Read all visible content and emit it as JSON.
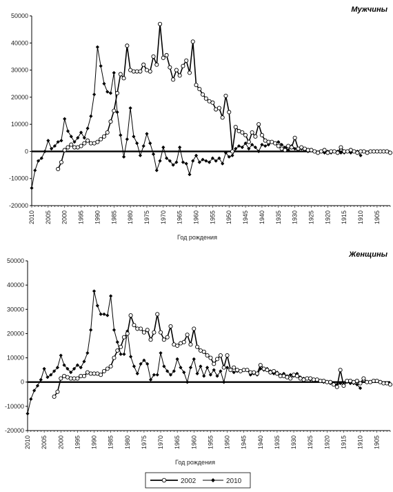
{
  "legend": {
    "placement": "bottom-center"
  },
  "chart_data": [
    {
      "type": "line",
      "title": "Мужчины",
      "xlabel": "Год рождения",
      "ylabel": "",
      "ylim": [
        -20000,
        50000
      ],
      "yticks": [
        -20000,
        -10000,
        0,
        10000,
        20000,
        30000,
        40000,
        50000
      ],
      "xlim": [
        2010,
        1901
      ],
      "xticks": [
        2010,
        2005,
        2000,
        1995,
        1990,
        1985,
        1980,
        1975,
        1970,
        1965,
        1960,
        1955,
        1950,
        1945,
        1940,
        1935,
        1930,
        1925,
        1920,
        1915,
        1910,
        1905
      ],
      "grid": false,
      "series": [
        {
          "name": "2002",
          "color": "#000000",
          "marker": "open-circle",
          "x": [
            2002,
            2001,
            2000,
            1999,
            1998,
            1997,
            1996,
            1995,
            1994,
            1993,
            1992,
            1991,
            1990,
            1989,
            1988,
            1987,
            1986,
            1985,
            1984,
            1983,
            1982,
            1981,
            1980,
            1979,
            1978,
            1977,
            1976,
            1975,
            1974,
            1973,
            1972,
            1971,
            1970,
            1969,
            1968,
            1967,
            1966,
            1965,
            1964,
            1963,
            1962,
            1961,
            1960,
            1959,
            1958,
            1957,
            1956,
            1955,
            1954,
            1953,
            1952,
            1951,
            1950,
            1949,
            1948,
            1947,
            1946,
            1945,
            1944,
            1943,
            1942,
            1941,
            1940,
            1939,
            1938,
            1937,
            1936,
            1935,
            1934,
            1933,
            1932,
            1931,
            1930,
            1929,
            1928,
            1927,
            1926,
            1925,
            1924,
            1923,
            1922,
            1921,
            1920,
            1919,
            1918,
            1917,
            1916,
            1915,
            1914,
            1913,
            1912,
            1911,
            1910,
            1909,
            1908,
            1907,
            1906,
            1905,
            1904,
            1903,
            1902,
            1901
          ],
          "values": [
            -6500,
            -4000,
            500,
            1500,
            2500,
            1500,
            1500,
            2000,
            3000,
            4000,
            3000,
            3000,
            3500,
            4500,
            5500,
            7000,
            11000,
            15000,
            21500,
            28500,
            27000,
            39000,
            30000,
            29500,
            29500,
            29500,
            32000,
            30000,
            29500,
            35000,
            32000,
            47000,
            34500,
            35500,
            31000,
            26500,
            30000,
            28000,
            31500,
            33500,
            29000,
            40500,
            24500,
            23000,
            21000,
            19500,
            18500,
            18000,
            15500,
            16000,
            12500,
            20500,
            14500,
            0,
            9000,
            7500,
            7000,
            6000,
            3500,
            7000,
            5500,
            10000,
            6000,
            4000,
            3500,
            3500,
            3000,
            2000,
            1000,
            500,
            2000,
            1500,
            5000,
            1000,
            1500,
            1000,
            500,
            500,
            0,
            -500,
            0,
            500,
            -500,
            0,
            0,
            -500,
            1500,
            0,
            0,
            500,
            0,
            -500,
            0,
            0,
            -500,
            0,
            0,
            0,
            0,
            0,
            0,
            -500
          ]
        },
        {
          "name": "2010",
          "color": "#000000",
          "marker": "filled-diamond",
          "x": [
            2010,
            2009,
            2008,
            2007,
            2006,
            2005,
            2004,
            2003,
            2002,
            2001,
            2000,
            1999,
            1998,
            1997,
            1996,
            1995,
            1994,
            1993,
            1992,
            1991,
            1990,
            1989,
            1988,
            1987,
            1986,
            1985,
            1984,
            1983,
            1982,
            1981,
            1980,
            1979,
            1978,
            1977,
            1976,
            1975,
            1974,
            1973,
            1972,
            1971,
            1970,
            1969,
            1968,
            1967,
            1966,
            1965,
            1964,
            1963,
            1962,
            1961,
            1960,
            1959,
            1958,
            1957,
            1956,
            1955,
            1954,
            1953,
            1952,
            1951,
            1950,
            1949,
            1948,
            1947,
            1946,
            1945,
            1944,
            1943,
            1942,
            1941,
            1940,
            1939,
            1938,
            1937,
            1936,
            1935,
            1934,
            1933,
            1932,
            1931,
            1930,
            1929,
            1928,
            1927,
            1926,
            1925,
            1924,
            1923,
            1922,
            1921,
            1920,
            1919,
            1918,
            1917,
            1916,
            1915,
            1914,
            1913,
            1912,
            1911,
            1910
          ],
          "values": [
            -13500,
            -7000,
            -3500,
            -2500,
            0,
            4000,
            1000,
            2000,
            3500,
            4000,
            12000,
            7500,
            5500,
            3500,
            5000,
            7000,
            5000,
            8500,
            13000,
            21000,
            38500,
            31500,
            25000,
            22000,
            21500,
            29000,
            14500,
            6000,
            -2000,
            4500,
            16000,
            5500,
            3000,
            -1500,
            2000,
            6500,
            3000,
            -1000,
            -7000,
            -3500,
            1500,
            -2500,
            -3500,
            -5000,
            -4000,
            1500,
            -4000,
            -4500,
            -8500,
            -3500,
            -1500,
            -4000,
            -3000,
            -3500,
            -4000,
            -2500,
            -3500,
            -2500,
            -4500,
            -500,
            -2000,
            -1500,
            1000,
            2000,
            1500,
            3000,
            1000,
            2500,
            1500,
            0,
            2500,
            2000,
            2500,
            3500,
            3000,
            3500,
            2500,
            1500,
            500,
            2000,
            1000,
            500,
            1000,
            500,
            0,
            500,
            0,
            -500,
            0,
            -500,
            0,
            -500,
            0,
            0,
            -500,
            -500,
            0,
            -500,
            0,
            0,
            -1500
          ]
        }
      ]
    },
    {
      "type": "line",
      "title": "Женщины",
      "xlabel": "Год рождения",
      "ylabel": "",
      "ylim": [
        -20000,
        50000
      ],
      "yticks": [
        -20000,
        -10000,
        0,
        10000,
        20000,
        30000,
        40000,
        50000
      ],
      "xlim": [
        2010,
        1901
      ],
      "xticks": [
        2010,
        2005,
        2000,
        1995,
        1990,
        1985,
        1980,
        1975,
        1970,
        1965,
        1960,
        1955,
        1950,
        1945,
        1940,
        1935,
        1930,
        1925,
        1920,
        1915,
        1910,
        1905
      ],
      "grid": false,
      "series": [
        {
          "name": "2002",
          "color": "#000000",
          "marker": "open-circle",
          "x": [
            2002,
            2001,
            2000,
            1999,
            1998,
            1997,
            1996,
            1995,
            1994,
            1993,
            1992,
            1991,
            1990,
            1989,
            1988,
            1987,
            1986,
            1985,
            1984,
            1983,
            1982,
            1981,
            1980,
            1979,
            1978,
            1977,
            1976,
            1975,
            1974,
            1973,
            1972,
            1971,
            1970,
            1969,
            1968,
            1967,
            1966,
            1965,
            1964,
            1963,
            1962,
            1961,
            1960,
            1959,
            1958,
            1957,
            1956,
            1955,
            1954,
            1953,
            1952,
            1951,
            1950,
            1949,
            1948,
            1947,
            1946,
            1945,
            1944,
            1943,
            1942,
            1941,
            1940,
            1939,
            1938,
            1937,
            1936,
            1935,
            1934,
            1933,
            1932,
            1931,
            1930,
            1929,
            1928,
            1927,
            1926,
            1925,
            1924,
            1923,
            1922,
            1921,
            1920,
            1919,
            1918,
            1917,
            1916,
            1915,
            1914,
            1913,
            1912,
            1911,
            1910,
            1909,
            1908,
            1907,
            1906,
            1905,
            1904,
            1903,
            1902,
            1901
          ],
          "values": [
            -6000,
            -4000,
            1500,
            2500,
            2000,
            1500,
            1500,
            1500,
            2500,
            2500,
            4000,
            3500,
            3500,
            3500,
            3000,
            4500,
            5500,
            6500,
            10000,
            13000,
            14500,
            18500,
            20000,
            27500,
            23500,
            22000,
            22000,
            20500,
            21500,
            17500,
            20500,
            28000,
            20500,
            17500,
            18500,
            23000,
            15500,
            15000,
            16000,
            16500,
            19500,
            15500,
            22000,
            14500,
            13000,
            12500,
            11000,
            10000,
            7500,
            9500,
            11000,
            6000,
            11000,
            5000,
            6000,
            5000,
            4500,
            5000,
            5000,
            4000,
            4000,
            3500,
            7000,
            5500,
            5000,
            4000,
            4500,
            3500,
            2500,
            2500,
            2000,
            1500,
            3000,
            2500,
            1500,
            1000,
            1500,
            1500,
            1000,
            1000,
            500,
            500,
            0,
            0,
            -1000,
            -2000,
            5000,
            -1500,
            500,
            500,
            0,
            500,
            -500,
            1500,
            0,
            0,
            500,
            500,
            0,
            -500,
            -500,
            -1000
          ]
        },
        {
          "name": "2010",
          "color": "#000000",
          "marker": "filled-diamond",
          "x": [
            2010,
            2009,
            2008,
            2007,
            2006,
            2005,
            2004,
            2003,
            2002,
            2001,
            2000,
            1999,
            1998,
            1997,
            1996,
            1995,
            1994,
            1993,
            1992,
            1991,
            1990,
            1989,
            1988,
            1987,
            1986,
            1985,
            1984,
            1983,
            1982,
            1981,
            1980,
            1979,
            1978,
            1977,
            1976,
            1975,
            1974,
            1973,
            1972,
            1971,
            1970,
            1969,
            1968,
            1967,
            1966,
            1965,
            1964,
            1963,
            1962,
            1961,
            1960,
            1959,
            1958,
            1957,
            1956,
            1955,
            1954,
            1953,
            1952,
            1951,
            1950,
            1949,
            1948,
            1947,
            1946,
            1945,
            1944,
            1943,
            1942,
            1941,
            1940,
            1939,
            1938,
            1937,
            1936,
            1935,
            1934,
            1933,
            1932,
            1931,
            1930,
            1929,
            1928,
            1927,
            1926,
            1925,
            1924,
            1923,
            1922,
            1921,
            1920,
            1919,
            1918,
            1917,
            1916,
            1915,
            1914,
            1913,
            1912,
            1911,
            1910
          ],
          "values": [
            -13000,
            -7000,
            -3500,
            -1500,
            1000,
            5500,
            2000,
            3000,
            4500,
            6000,
            11000,
            7000,
            5500,
            4000,
            5500,
            7000,
            6000,
            8500,
            12000,
            21500,
            37500,
            31500,
            28000,
            28000,
            27500,
            35500,
            21500,
            16500,
            11500,
            11500,
            21000,
            10500,
            6500,
            3500,
            7500,
            9000,
            7500,
            1000,
            3000,
            3000,
            12000,
            6500,
            4500,
            3000,
            4500,
            9500,
            6000,
            4000,
            0,
            6000,
            9500,
            3500,
            6500,
            2500,
            6000,
            3000,
            5000,
            2500,
            4500,
            0,
            6000,
            5000,
            4000,
            4500,
            4500,
            5000,
            5000,
            3000,
            3500,
            3000,
            5500,
            5000,
            5500,
            4500,
            3500,
            4000,
            3000,
            3500,
            2500,
            3000,
            2500,
            3500,
            2000,
            1500,
            1500,
            1000,
            1000,
            500,
            500,
            0,
            0,
            -500,
            -500,
            -1000,
            -500,
            -1000,
            0,
            -500,
            -500,
            -1000,
            -2500
          ]
        }
      ]
    }
  ]
}
